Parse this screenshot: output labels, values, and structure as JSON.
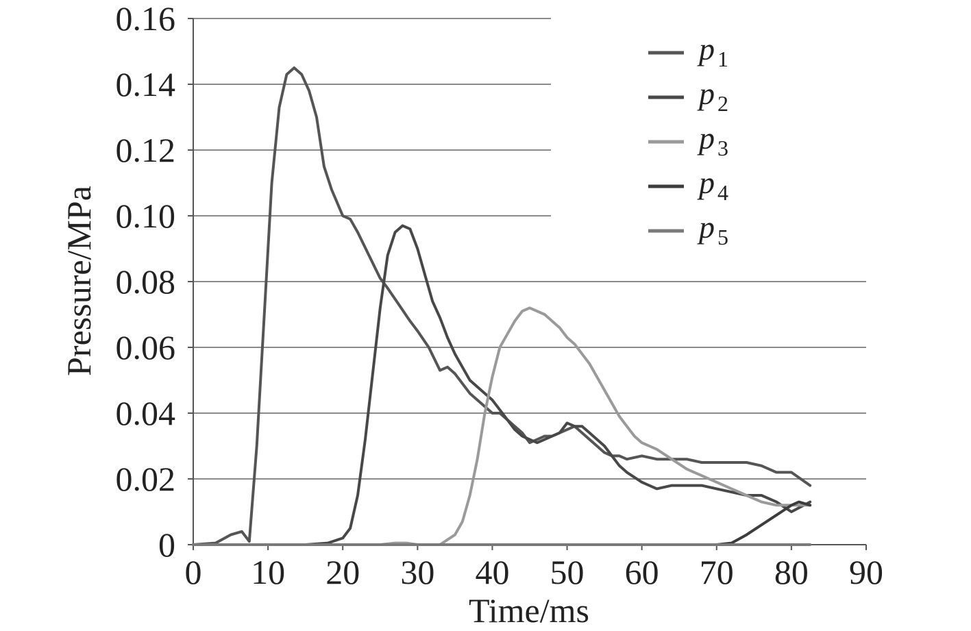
{
  "chart_data": {
    "type": "line",
    "title": "",
    "xlabel": "Time/ms",
    "ylabel": "Pressure/MPa",
    "xlim": [
      0,
      90
    ],
    "ylim": [
      0,
      0.16
    ],
    "x_ticks": [
      0,
      10,
      20,
      30,
      40,
      50,
      60,
      70,
      80,
      90
    ],
    "x_tick_labels": [
      "0",
      "10",
      "20",
      "30",
      "40",
      "50",
      "60",
      "70",
      "80",
      "90"
    ],
    "y_ticks": [
      0,
      0.02,
      0.04,
      0.06,
      0.08,
      0.1,
      0.12,
      0.14,
      0.16
    ],
    "y_tick_labels": [
      "0",
      "0.02",
      "0.04",
      "0.06",
      "0.08",
      "0.10",
      "0.12",
      "0.14",
      "0.16"
    ],
    "grid": "horizontal",
    "legend_position": "top-right",
    "series": [
      {
        "name": "p",
        "sub": "1",
        "color": "#555555",
        "x": [
          0,
          3,
          5,
          6.5,
          7.5,
          8.5,
          9.5,
          10.5,
          11.5,
          12.5,
          13.5,
          14.5,
          15.5,
          16.5,
          17.5,
          18.5,
          20,
          21,
          22,
          23.5,
          25,
          26,
          27.5,
          29,
          30,
          31.5,
          33,
          34,
          35,
          36,
          37,
          38.5,
          40,
          41,
          42,
          43,
          44,
          45,
          46,
          47,
          48,
          49,
          50,
          51,
          52,
          53,
          54,
          55,
          56,
          57,
          58,
          60,
          62,
          64,
          66,
          68,
          70,
          72,
          74,
          76,
          78,
          80,
          82.5
        ],
        "y": [
          0,
          0.0005,
          0.003,
          0.004,
          0.001,
          0.03,
          0.07,
          0.11,
          0.133,
          0.143,
          0.145,
          0.143,
          0.138,
          0.13,
          0.115,
          0.108,
          0.1,
          0.099,
          0.095,
          0.088,
          0.081,
          0.078,
          0.073,
          0.068,
          0.065,
          0.06,
          0.053,
          0.054,
          0.052,
          0.049,
          0.046,
          0.043,
          0.04,
          0.04,
          0.038,
          0.036,
          0.034,
          0.031,
          0.032,
          0.033,
          0.033,
          0.034,
          0.035,
          0.036,
          0.034,
          0.032,
          0.03,
          0.028,
          0.027,
          0.027,
          0.026,
          0.027,
          0.026,
          0.026,
          0.026,
          0.025,
          0.025,
          0.025,
          0.025,
          0.024,
          0.022,
          0.022,
          0.018
        ]
      },
      {
        "name": "p",
        "sub": "2",
        "color": "#484848",
        "x": [
          0,
          15,
          18,
          20,
          21,
          22,
          23,
          24,
          25,
          26,
          27,
          28,
          29,
          30,
          31,
          32,
          33,
          34,
          35,
          36,
          37,
          38,
          39,
          40,
          41,
          42,
          43,
          44,
          45,
          46,
          47,
          48,
          49,
          50,
          51,
          52,
          53,
          54,
          55,
          56,
          57,
          58,
          60,
          62,
          64,
          66,
          68,
          70,
          72,
          74,
          76,
          78,
          80,
          82.5
        ],
        "y": [
          0,
          0,
          0.0005,
          0.002,
          0.005,
          0.015,
          0.032,
          0.052,
          0.072,
          0.088,
          0.095,
          0.097,
          0.096,
          0.09,
          0.082,
          0.074,
          0.069,
          0.063,
          0.058,
          0.054,
          0.05,
          0.048,
          0.046,
          0.044,
          0.041,
          0.038,
          0.035,
          0.033,
          0.032,
          0.031,
          0.032,
          0.033,
          0.034,
          0.037,
          0.036,
          0.036,
          0.034,
          0.032,
          0.03,
          0.027,
          0.024,
          0.022,
          0.019,
          0.017,
          0.018,
          0.018,
          0.018,
          0.017,
          0.016,
          0.015,
          0.015,
          0.013,
          0.01,
          0.013
        ]
      },
      {
        "name": "p",
        "sub": "3",
        "color": "#9a9a9a",
        "x": [
          0,
          25,
          27,
          28.5,
          30,
          33,
          35,
          36,
          37,
          38,
          39,
          40,
          41,
          42,
          43,
          44,
          45,
          46,
          47,
          48,
          49,
          50,
          51,
          52,
          53,
          54,
          55,
          56,
          57,
          58,
          59,
          60,
          62,
          64,
          66,
          68,
          70,
          72,
          74,
          76,
          78,
          80,
          82.5
        ],
        "y": [
          0,
          0,
          0.0005,
          0.0005,
          0,
          0,
          0.003,
          0.007,
          0.015,
          0.026,
          0.04,
          0.051,
          0.06,
          0.064,
          0.068,
          0.071,
          0.072,
          0.071,
          0.07,
          0.068,
          0.066,
          0.063,
          0.061,
          0.058,
          0.055,
          0.051,
          0.047,
          0.043,
          0.039,
          0.036,
          0.033,
          0.031,
          0.029,
          0.026,
          0.023,
          0.021,
          0.019,
          0.017,
          0.015,
          0.013,
          0.012,
          0.012,
          0.012
        ]
      },
      {
        "name": "p",
        "sub": "4",
        "color": "#3c3c3c",
        "x": [
          0,
          70,
          72,
          74,
          76,
          78,
          80,
          81,
          82.5
        ],
        "y": [
          0,
          0,
          0.0005,
          0.003,
          0.006,
          0.009,
          0.012,
          0.013,
          0.012
        ]
      },
      {
        "name": "p",
        "sub": "5",
        "color": "#7a7a7a",
        "x": [
          0,
          82.5
        ],
        "y": [
          0,
          0
        ]
      }
    ]
  }
}
